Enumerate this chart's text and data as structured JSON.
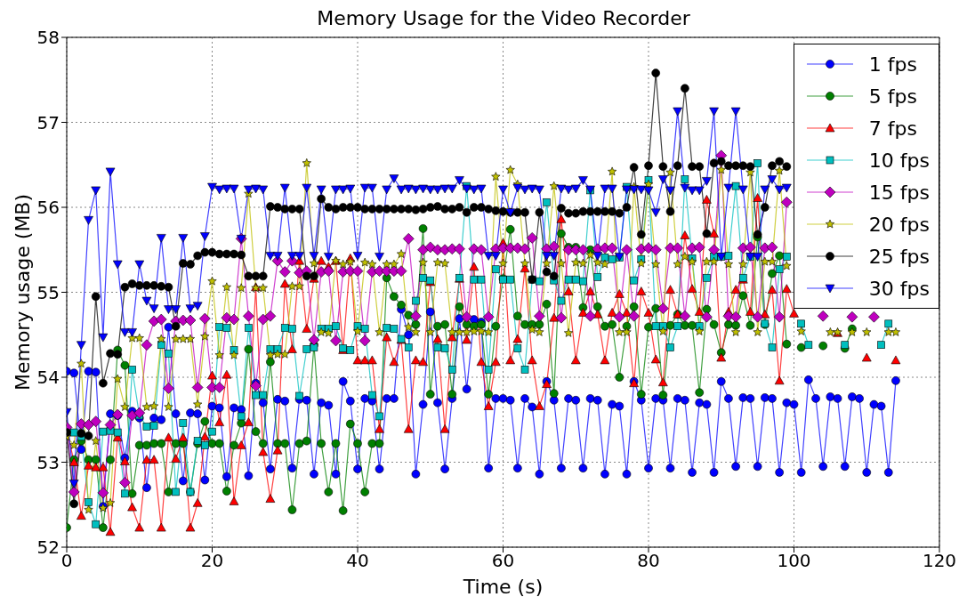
{
  "chart_data": {
    "type": "line",
    "title": "Memory Usage for the Video Recorder",
    "xlabel": "Time (s)",
    "ylabel": "Memory usage (MB)",
    "x": [
      0,
      1,
      2,
      3,
      4,
      5,
      6,
      7,
      8,
      9,
      10,
      11,
      12,
      13,
      14,
      15,
      16,
      17,
      18,
      19,
      20,
      21,
      22,
      23,
      24,
      25,
      26,
      27,
      28,
      29,
      30,
      31,
      32,
      33,
      34,
      35,
      36,
      37,
      38,
      39,
      40,
      41,
      42,
      43,
      44,
      45,
      46,
      47,
      48,
      49,
      50,
      51,
      52,
      53,
      54,
      55,
      56,
      57,
      58,
      59,
      60,
      61,
      62,
      63,
      64,
      65,
      66,
      67,
      68,
      69,
      70,
      71,
      72,
      73,
      74,
      75,
      76,
      77,
      78,
      79,
      80,
      81,
      82,
      83,
      84,
      85,
      86,
      87,
      88,
      89,
      90,
      91,
      92,
      93,
      94,
      95,
      96,
      97,
      98,
      99,
      100,
      101,
      102,
      103,
      104,
      105,
      106,
      107,
      108,
      109,
      110,
      111,
      112,
      113,
      114
    ],
    "xlim": [
      0,
      120
    ],
    "xticks": [
      0,
      20,
      40,
      60,
      80,
      100,
      120
    ],
    "ylim": [
      52,
      58
    ],
    "yticks": [
      52,
      53,
      54,
      55,
      56,
      57,
      58
    ],
    "grid": true,
    "legend": "top right",
    "line_style": "solid",
    "series": [
      {
        "name": "1 fps",
        "color": "#0000ff",
        "marker": "circle",
        "values": [
          54.07,
          54.05,
          53.15,
          54.07,
          54.06,
          52.48,
          53.57,
          53.55,
          53.05,
          53.6,
          53.52,
          52.7,
          53.52,
          53.5,
          54.59,
          53.57,
          52.78,
          53.58,
          53.57,
          52.79,
          53.66,
          53.64,
          52.83,
          53.64,
          53.62,
          52.84,
          53.93,
          53.7,
          52.92,
          53.74,
          53.72,
          52.93,
          53.74,
          53.73,
          52.86,
          53.7,
          53.67,
          52.86,
          53.95,
          53.72,
          52.92,
          53.75,
          53.72,
          52.92,
          53.75,
          53.75,
          54.8,
          54.5,
          52.86,
          53.68,
          54.77,
          53.7,
          52.92,
          53.75,
          54.69,
          53.86,
          54.68,
          54.65,
          52.93,
          53.75,
          53.75,
          53.73,
          52.93,
          53.75,
          53.65,
          52.86,
          53.95,
          53.73,
          52.93,
          53.75,
          53.73,
          52.93,
          53.75,
          53.73,
          52.86,
          53.68,
          53.66,
          52.86,
          53.95,
          53.73,
          52.93,
          53.75,
          53.73,
          52.93,
          53.75,
          53.73,
          52.88,
          53.7,
          53.68,
          52.88,
          53.95,
          53.75,
          52.95,
          53.76,
          53.75,
          52.95,
          53.76,
          53.75,
          52.88,
          53.7,
          53.68,
          52.88,
          53.97,
          53.75,
          52.95,
          53.77,
          53.75,
          52.95,
          53.77,
          53.75,
          52.88,
          53.68,
          53.66,
          52.88,
          53.96
        ]
      },
      {
        "name": "5 fps",
        "color": "#008000",
        "marker": "circle",
        "values": [
          52.23,
          53.03,
          53.25,
          53.03,
          53.03,
          52.23,
          53.03,
          54.32,
          54.14,
          52.63,
          53.2,
          53.2,
          53.22,
          53.22,
          52.65,
          53.22,
          53.22,
          52.65,
          53.22,
          53.48,
          53.22,
          53.22,
          52.66,
          53.2,
          53.46,
          54.33,
          53.36,
          53.22,
          54.18,
          53.22,
          53.22,
          52.44,
          53.22,
          53.25,
          54.38,
          53.22,
          52.65,
          53.22,
          52.43,
          53.45,
          53.22,
          52.65,
          53.22,
          53.22,
          55.17,
          54.95,
          54.85,
          54.73,
          54.62,
          55.75,
          53.8,
          54.6,
          54.62,
          53.8,
          54.83,
          54.62,
          54.6,
          54.62,
          53.8,
          54.6,
          55.16,
          55.74,
          54.72,
          54.62,
          54.62,
          54.62,
          54.86,
          53.81,
          55.69,
          55.53,
          55.53,
          54.82,
          55.5,
          54.83,
          54.6,
          54.62,
          54.0,
          54.6,
          54.83,
          53.8,
          54.59,
          54.81,
          53.79,
          54.61,
          54.74,
          54.61,
          54.61,
          53.82,
          54.8,
          54.62,
          54.29,
          54.62,
          54.61,
          54.96,
          54.61,
          55.65,
          54.62,
          55.22,
          55.43,
          54.39,
          null,
          54.35,
          null,
          null,
          54.37,
          null,
          null,
          54.34,
          54.57,
          null,
          null,
          null,
          null,
          null,
          null
        ]
      },
      {
        "name": "7 fps",
        "color": "#ff0000",
        "marker": "triangle",
        "values": [
          53.4,
          53.0,
          52.37,
          52.96,
          52.94,
          52.94,
          52.18,
          53.29,
          53.01,
          52.47,
          52.23,
          53.03,
          53.03,
          52.23,
          53.29,
          53.04,
          53.29,
          52.23,
          52.52,
          53.3,
          54.02,
          53.47,
          54.03,
          52.54,
          53.2,
          53.47,
          55.06,
          53.12,
          52.57,
          53.14,
          55.1,
          54.33,
          55.37,
          54.57,
          55.16,
          55.37,
          55.3,
          55.37,
          54.32,
          55.4,
          54.2,
          54.2,
          54.2,
          53.39,
          54.47,
          54.18,
          54.44,
          53.39,
          54.2,
          54.18,
          55.12,
          54.45,
          53.39,
          54.47,
          55.16,
          54.44,
          55.3,
          54.18,
          53.66,
          54.18,
          55.58,
          54.2,
          54.45,
          55.28,
          54.2,
          53.66,
          53.92,
          54.7,
          55.86,
          55.01,
          54.2,
          54.76,
          55.01,
          54.74,
          54.2,
          54.76,
          54.98,
          54.76,
          53.93,
          55.01,
          54.76,
          54.21,
          53.94,
          55.03,
          54.74,
          55.67,
          55.04,
          54.77,
          56.09,
          55.69,
          54.23,
          54.77,
          55.03,
          55.15,
          54.77,
          56.11,
          54.74,
          55.03,
          53.96,
          55.04,
          54.75,
          null,
          null,
          null,
          null,
          null,
          54.52,
          null,
          null,
          null,
          54.23,
          null,
          null,
          null,
          54.2
        ]
      },
      {
        "name": "10 fps",
        "color": "#00bfbf",
        "marker": "square",
        "values": [
          53.36,
          53.35,
          53.3,
          52.53,
          52.27,
          53.36,
          53.37,
          53.35,
          52.63,
          54.09,
          53.55,
          53.42,
          53.43,
          54.38,
          54.28,
          52.65,
          53.46,
          52.65,
          53.25,
          53.2,
          53.36,
          54.59,
          54.58,
          54.32,
          53.54,
          54.58,
          53.79,
          53.79,
          54.33,
          54.33,
          54.58,
          54.57,
          53.78,
          54.33,
          54.35,
          54.57,
          54.57,
          54.6,
          54.34,
          54.32,
          54.6,
          54.57,
          53.79,
          53.54,
          54.58,
          54.57,
          54.45,
          54.35,
          54.9,
          55.17,
          55.14,
          54.35,
          54.34,
          54.09,
          55.17,
          56.25,
          55.15,
          55.15,
          54.09,
          55.27,
          55.15,
          55.15,
          54.34,
          54.09,
          55.15,
          55.13,
          56.06,
          55.14,
          54.9,
          55.15,
          55.15,
          55.13,
          56.2,
          55.18,
          55.41,
          55.39,
          55.41,
          56.24,
          55.14,
          55.39,
          56.32,
          54.6,
          54.6,
          54.35,
          54.6,
          56.33,
          55.4,
          54.6,
          55.17,
          55.42,
          55.42,
          55.43,
          56.25,
          55.17,
          55.42,
          56.52,
          54.63,
          54.35,
          55.27,
          55.42,
          null,
          54.63,
          54.38,
          null,
          null,
          null,
          null,
          54.38,
          null,
          null,
          null,
          null,
          54.38,
          54.63,
          null
        ]
      },
      {
        "name": "15 fps",
        "color": "#bf00bf",
        "marker": "diamond",
        "values": [
          53.41,
          52.65,
          53.45,
          53.44,
          53.48,
          52.64,
          53.44,
          53.56,
          52.76,
          53.55,
          53.58,
          54.38,
          54.66,
          54.68,
          53.87,
          54.66,
          54.67,
          54.67,
          53.88,
          54.69,
          53.88,
          53.88,
          54.7,
          54.68,
          55.63,
          54.72,
          53.9,
          54.68,
          54.72,
          55.37,
          55.24,
          55.37,
          55.23,
          55.25,
          54.44,
          55.24,
          55.25,
          54.43,
          55.24,
          55.25,
          55.25,
          54.43,
          55.24,
          55.25,
          55.25,
          55.25,
          55.25,
          55.63,
          54.72,
          55.5,
          55.53,
          55.5,
          55.5,
          55.51,
          55.51,
          54.71,
          55.51,
          55.5,
          54.71,
          55.51,
          55.52,
          55.52,
          55.52,
          55.51,
          55.64,
          54.72,
          55.51,
          55.54,
          54.7,
          55.5,
          55.5,
          55.5,
          54.72,
          55.51,
          55.52,
          55.52,
          54.71,
          55.5,
          54.72,
          55.51,
          55.52,
          55.5,
          54.81,
          55.52,
          55.52,
          54.72,
          55.52,
          55.53,
          54.71,
          55.5,
          56.61,
          54.72,
          54.71,
          55.52,
          55.53,
          54.71,
          55.52,
          55.53,
          54.71,
          56.06,
          null,
          null,
          null,
          null,
          54.72,
          null,
          null,
          null,
          54.71,
          null,
          null,
          54.71,
          null,
          null,
          null
        ]
      },
      {
        "name": "20 fps",
        "color": "#bfbf00",
        "marker": "star",
        "values": [
          53.3,
          53.2,
          54.16,
          52.44,
          53.25,
          52.46,
          52.52,
          53.98,
          53.65,
          54.46,
          54.46,
          53.65,
          53.66,
          54.45,
          53.65,
          54.45,
          54.45,
          54.45,
          53.68,
          54.48,
          55.13,
          54.26,
          55.06,
          54.26,
          55.05,
          56.16,
          55.05,
          55.05,
          54.26,
          54.27,
          54.27,
          55.07,
          55.07,
          56.52,
          55.34,
          54.53,
          54.52,
          55.37,
          55.33,
          55.36,
          54.54,
          55.35,
          55.33,
          54.53,
          55.33,
          55.33,
          55.45,
          54.59,
          54.53,
          55.35,
          54.53,
          55.35,
          55.34,
          54.53,
          54.53,
          54.53,
          54.54,
          54.54,
          54.53,
          56.36,
          55.34,
          56.44,
          56.27,
          55.34,
          54.56,
          54.53,
          55.34,
          56.25,
          55.34,
          54.52,
          55.35,
          55.34,
          55.44,
          55.35,
          55.33,
          56.42,
          54.53,
          54.53,
          56.24,
          55.34,
          56.27,
          55.33,
          54.54,
          56.41,
          55.33,
          55.42,
          55.36,
          54.54,
          55.36,
          55.36,
          56.44,
          55.33,
          54.53,
          55.33,
          56.41,
          54.53,
          55.36,
          55.36,
          56.43,
          55.31,
          null,
          54.54,
          null,
          null,
          null,
          54.53,
          54.53,
          null,
          54.53,
          null,
          54.53,
          null,
          null,
          54.53,
          54.53
        ]
      },
      {
        "name": "25 fps",
        "color": "#000000",
        "marker": "circle",
        "values": [
          53.35,
          52.51,
          53.34,
          53.31,
          54.95,
          53.93,
          54.28,
          54.27,
          55.06,
          55.1,
          55.08,
          55.08,
          55.08,
          55.07,
          55.06,
          54.6,
          55.34,
          55.33,
          55.43,
          55.47,
          55.47,
          55.45,
          55.45,
          55.45,
          55.44,
          55.19,
          55.19,
          55.19,
          56.01,
          56.0,
          55.98,
          55.98,
          55.98,
          55.19,
          55.19,
          56.1,
          56.0,
          55.98,
          56.0,
          56.0,
          56.0,
          55.98,
          55.98,
          55.98,
          55.98,
          55.98,
          55.98,
          55.98,
          55.97,
          55.98,
          56.0,
          56.01,
          55.98,
          55.98,
          56.0,
          55.94,
          56.0,
          56.0,
          55.98,
          55.96,
          55.95,
          55.94,
          55.94,
          55.94,
          55.15,
          55.94,
          55.24,
          55.19,
          55.99,
          55.93,
          55.93,
          55.95,
          55.95,
          55.95,
          55.95,
          55.95,
          55.93,
          56.0,
          56.47,
          55.68,
          56.49,
          57.58,
          56.48,
          55.95,
          56.49,
          57.4,
          56.48,
          56.48,
          55.69,
          56.52,
          56.54,
          56.49,
          56.49,
          56.49,
          56.48,
          55.68,
          56.0,
          56.49,
          56.54,
          56.48,
          null,
          null,
          null,
          null,
          null,
          null,
          null,
          null,
          null,
          null,
          null,
          null,
          null,
          null,
          null
        ]
      },
      {
        "name": "30 fps",
        "color": "#0000ff",
        "marker": "triangle_down",
        "values": [
          53.59,
          52.75,
          54.38,
          55.85,
          56.2,
          54.47,
          56.42,
          55.33,
          54.53,
          54.53,
          55.33,
          54.9,
          54.81,
          55.64,
          54.8,
          54.8,
          55.64,
          54.81,
          54.84,
          55.66,
          56.24,
          56.21,
          56.22,
          56.22,
          55.63,
          56.21,
          56.22,
          56.21,
          55.43,
          55.43,
          56.23,
          55.43,
          55.43,
          56.23,
          55.43,
          56.21,
          55.42,
          56.21,
          56.21,
          56.22,
          55.43,
          56.23,
          56.23,
          55.42,
          56.21,
          56.34,
          56.21,
          56.22,
          56.21,
          56.22,
          56.21,
          56.21,
          56.22,
          56.22,
          56.32,
          56.22,
          56.21,
          56.22,
          55.43,
          55.43,
          56.21,
          55.94,
          56.23,
          56.21,
          56.22,
          56.21,
          55.43,
          55.43,
          56.22,
          56.21,
          56.22,
          56.32,
          56.21,
          55.43,
          56.22,
          56.22,
          55.42,
          56.21,
          56.21,
          56.21,
          56.2,
          55.94,
          56.33,
          56.2,
          57.13,
          56.23,
          56.2,
          56.2,
          56.31,
          57.13,
          55.42,
          56.23,
          57.13,
          56.21,
          55.42,
          55.42,
          56.21,
          56.33,
          56.21,
          56.23,
          null,
          null,
          null,
          null,
          null,
          null,
          null,
          null,
          null,
          null,
          null,
          null,
          null,
          null,
          null
        ]
      }
    ]
  }
}
